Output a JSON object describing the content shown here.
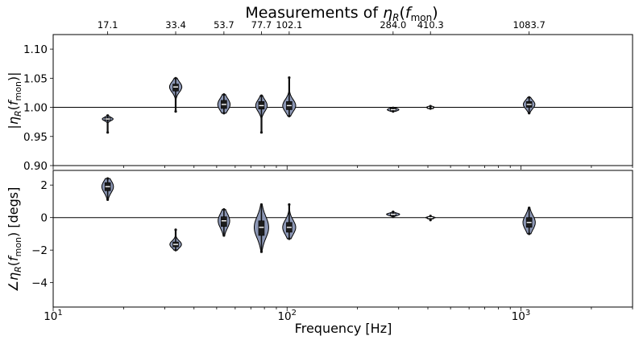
{
  "chart_data": {
    "type": "violin",
    "title_prefix": "Measurements of ",
    "title_math": "η_R(f_mon)",
    "xlabel": "Frequency [Hz]",
    "xscale": "log",
    "xlim": [
      10,
      3000
    ],
    "x_major_ticks": [
      10,
      100,
      1000
    ],
    "x_tick_labels": [
      "10",
      "10",
      "10"
    ],
    "x_tick_exponents": [
      "1",
      "2",
      "3"
    ],
    "top_tick_labels": [
      "17.1",
      "33.4",
      "53.7",
      "77.7",
      "102.1",
      "284.0",
      "410.3",
      "1083.7"
    ],
    "colors": {
      "violin_fill": "#8c97b5",
      "violin_edge": "#000000",
      "reference_line": "#000000"
    },
    "panels": [
      {
        "name": "magnitude",
        "ylabel_text": "|η_R(f_mon)|",
        "ylim": [
          0.9,
          1.125
        ],
        "yticks": [
          0.9,
          0.95,
          1.0,
          1.05,
          1.1
        ],
        "ytick_labels": [
          "0.90",
          "0.95",
          "1.00",
          "1.05",
          "1.10"
        ],
        "reference_y": 1.0,
        "violins": [
          {
            "freq": 17.1,
            "median": 0.98,
            "q1": 0.978,
            "q3": 0.982,
            "min": 0.957,
            "max": 0.986,
            "halfwidth": 0.75
          },
          {
            "freq": 33.4,
            "median": 1.035,
            "q1": 1.028,
            "q3": 1.04,
            "min": 0.993,
            "max": 1.05,
            "halfwidth": 0.85
          },
          {
            "freq": 53.7,
            "median": 1.005,
            "q1": 0.998,
            "q3": 1.012,
            "min": 0.99,
            "max": 1.022,
            "halfwidth": 0.85
          },
          {
            "freq": 77.7,
            "median": 1.003,
            "q1": 0.997,
            "q3": 1.01,
            "min": 0.957,
            "max": 1.02,
            "halfwidth": 0.8
          },
          {
            "freq": 102.1,
            "median": 1.003,
            "q1": 0.996,
            "q3": 1.01,
            "min": 0.985,
            "max": 1.051,
            "halfwidth": 0.9
          },
          {
            "freq": 284.0,
            "median": 0.996,
            "q1": 0.995,
            "q3": 0.998,
            "min": 0.993,
            "max": 0.999,
            "halfwidth": 0.8
          },
          {
            "freq": 410.3,
            "median": 1.0,
            "q1": 0.999,
            "q3": 1.001,
            "min": 0.998,
            "max": 1.002,
            "halfwidth": 0.55
          },
          {
            "freq": 1083.7,
            "median": 1.005,
            "q1": 1.0,
            "q3": 1.01,
            "min": 0.99,
            "max": 1.017,
            "halfwidth": 0.8
          }
        ]
      },
      {
        "name": "phase",
        "ylabel_text": "∠η_R(f_mon) [degs]",
        "ylim": [
          -5.5,
          2.9
        ],
        "yticks": [
          -4,
          -2,
          0,
          2
        ],
        "ytick_labels": [
          "−4",
          "−2",
          "0",
          "2"
        ],
        "reference_y": 0,
        "violins": [
          {
            "freq": 17.1,
            "median": 1.9,
            "q1": 1.65,
            "q3": 2.15,
            "min": 1.1,
            "max": 2.4,
            "halfwidth": 0.8
          },
          {
            "freq": 33.4,
            "median": -1.65,
            "q1": -1.8,
            "q3": -1.5,
            "min": -2.0,
            "max": -0.75,
            "halfwidth": 0.8
          },
          {
            "freq": 53.7,
            "median": -0.2,
            "q1": -0.55,
            "q3": 0.05,
            "min": -1.1,
            "max": 0.5,
            "halfwidth": 0.8
          },
          {
            "freq": 77.7,
            "median": -0.6,
            "q1": -1.1,
            "q3": -0.2,
            "min": -2.1,
            "max": 0.8,
            "halfwidth": 1.0
          },
          {
            "freq": 102.1,
            "median": -0.6,
            "q1": -0.9,
            "q3": -0.3,
            "min": -1.3,
            "max": 0.8,
            "halfwidth": 0.9
          },
          {
            "freq": 284.0,
            "median": 0.2,
            "q1": 0.15,
            "q3": 0.25,
            "min": 0.05,
            "max": 0.35,
            "halfwidth": 0.9
          },
          {
            "freq": 410.3,
            "median": 0.0,
            "q1": -0.03,
            "q3": 0.03,
            "min": -0.15,
            "max": 0.1,
            "halfwidth": 0.65
          },
          {
            "freq": 1083.7,
            "median": -0.3,
            "q1": -0.6,
            "q3": 0.0,
            "min": -1.0,
            "max": 0.6,
            "halfwidth": 0.85
          }
        ]
      }
    ]
  }
}
